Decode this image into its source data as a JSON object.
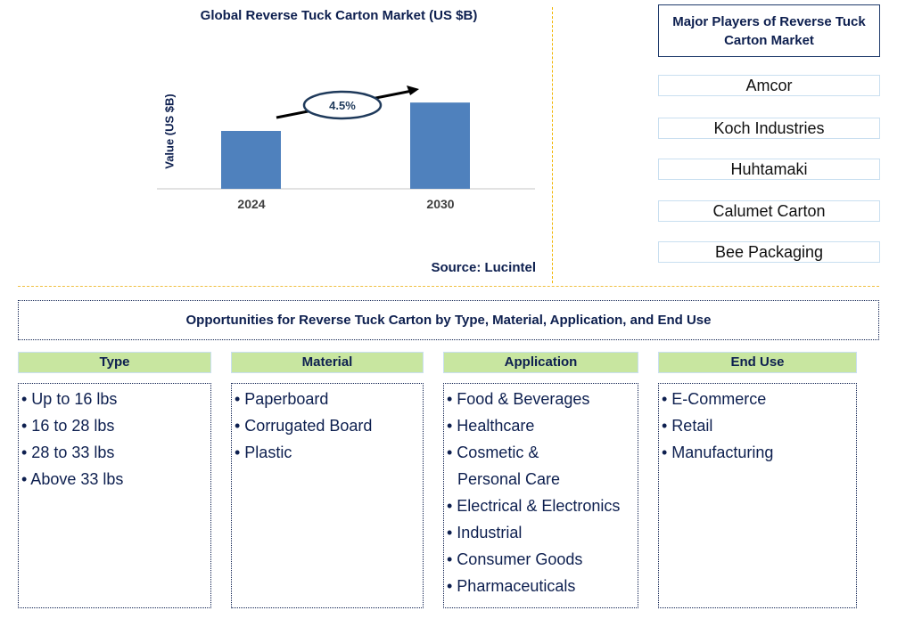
{
  "chart_data": {
    "type": "bar",
    "title": "Global Reverse Tuck Carton Market (US $B)",
    "ylabel": "Value (US $B)",
    "categories": [
      "2024",
      "2030"
    ],
    "values": [
      1.0,
      1.49
    ],
    "annotation": "4.5%",
    "source": "Source: Lucintel",
    "bar_color": "#4f81bd",
    "grid": false
  },
  "players": {
    "title": "Major Players of Reverse Tuck Carton Market",
    "items": [
      "Amcor",
      "Koch Industries",
      "Huhtamaki",
      "Calumet Carton",
      "Bee Packaging"
    ]
  },
  "opportunities": {
    "title": "Opportunities for Reverse Tuck Carton by Type, Material, Application, and End Use",
    "columns": [
      {
        "header": "Type",
        "items": [
          "• Up to 16 lbs",
          "• 16 to 28 lbs",
          "• 28 to 33 lbs",
          "• Above 33 lbs"
        ]
      },
      {
        "header": "Material",
        "items": [
          "• Paperboard",
          "• Corrugated Board",
          "• Plastic"
        ]
      },
      {
        "header": "Application",
        "items": [
          "• Food & Beverages",
          "• Healthcare",
          "• Cosmetic &",
          "Personal Care",
          "• Electrical & Electronics",
          "• Industrial",
          "• Consumer Goods",
          "• Pharmaceuticals"
        ]
      },
      {
        "header": "End Use",
        "items": [
          "• E-Commerce",
          "• Retail",
          "• Manufacturing"
        ]
      }
    ]
  }
}
